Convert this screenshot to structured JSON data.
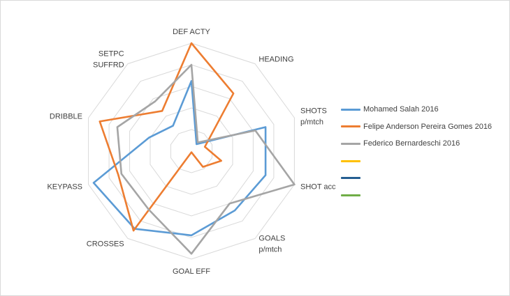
{
  "chart_data": {
    "type": "radar",
    "title": "",
    "axes": [
      "DEF ACTY",
      "HEADING",
      "SHOTS|p/mtch",
      "SHOT acc",
      "GOALS|p/mtch",
      "GOAL EFF",
      "CROSSES",
      "KEYPASS",
      "DRIBBLE",
      "SETPC|SUFFRD"
    ],
    "range": [
      0,
      1
    ],
    "rings": 5,
    "series": [
      {
        "name": "Mohamed Salah 2016",
        "color": "#5b9bd5",
        "values": [
          0.65,
          0.08,
          0.72,
          0.72,
          0.68,
          0.78,
          0.89,
          0.95,
          0.41,
          0.29
        ]
      },
      {
        "name": "Felipe Anderson Pereira Gomes 2016",
        "color": "#ed7d31",
        "values": [
          1.0,
          0.66,
          0.13,
          0.29,
          0.18,
          0.01,
          0.91,
          0.71,
          0.89,
          0.46
        ]
      },
      {
        "name": "Federico Bernardeschi 2016",
        "color": "#a5a5a5",
        "values": [
          0.8,
          0.1,
          0.62,
          1.0,
          0.6,
          0.95,
          0.67,
          0.68,
          0.72,
          0.57
        ]
      },
      {
        "name": "",
        "color": "#ffc000",
        "values": []
      },
      {
        "name": "",
        "color": "#255e91",
        "values": []
      },
      {
        "name": "",
        "color": "#70ad47",
        "values": []
      }
    ]
  }
}
